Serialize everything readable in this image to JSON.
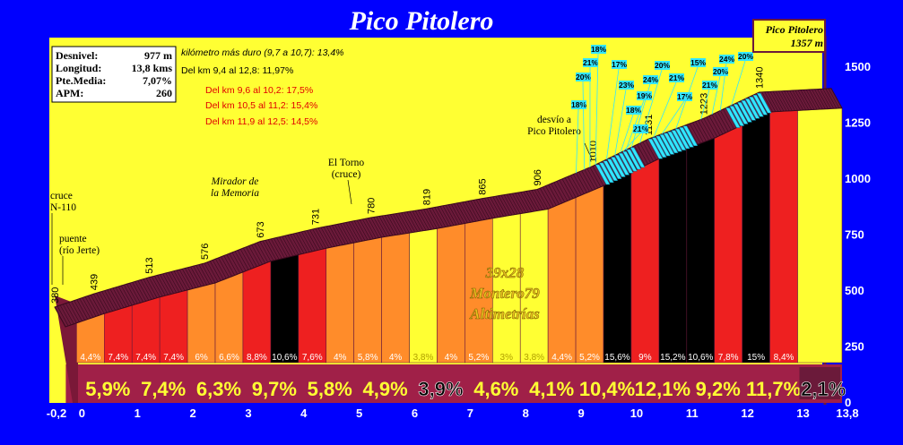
{
  "title": "Pico Pitolero",
  "stats": [
    {
      "label": "Desnivel:",
      "value": "977 m"
    },
    {
      "label": "Longitud:",
      "value": "13,8 kms"
    },
    {
      "label": "Pte.Media:",
      "value": "7,07%"
    },
    {
      "label": "APM:",
      "value": "260"
    }
  ],
  "notes": [
    {
      "text": "kilómetro más duro (9,7 a 10,7):  13,4%",
      "color": "#000000",
      "italic": true
    },
    {
      "text": "Del km 9,4 al 12,8:   11,97%",
      "color": "#000000",
      "italic": false
    },
    {
      "text": "Del km 9,6 al 10,2: 17,5%",
      "color": "#e00000",
      "italic": false
    },
    {
      "text": "Del km 10,5 al 11,2: 15,4%",
      "color": "#e00000",
      "italic": false
    },
    {
      "text": "Del km 11,9 al 12,5: 14,5%",
      "color": "#e00000",
      "italic": false
    }
  ],
  "summit": {
    "name": "Pico Pitolero",
    "elevation": "1357 m"
  },
  "watermark": [
    "39x28",
    "Montero79",
    "Altimetrías"
  ],
  "annotations": [
    {
      "lines": [
        "cruce",
        "N-110"
      ],
      "km": -0.2,
      "italic": false
    },
    {
      "lines": [
        "puente",
        "(río Jerte)"
      ],
      "km": -0.2,
      "italic": false
    },
    {
      "lines": [
        "Mirador de",
        "la Memoria"
      ],
      "km": 2.7,
      "italic": true
    },
    {
      "lines": [
        "El Torno",
        "(cruce)"
      ],
      "km": 4.8,
      "italic": false
    },
    {
      "lines": [
        "desvío a",
        "Pico Pitolero"
      ],
      "km": 9.0,
      "italic": false
    }
  ],
  "colors": {
    "background": "#0000fe",
    "plot": "#ffff33",
    "road": "#6b1a3a",
    "cyan": "#33e6ff",
    "seg_yellow": "#ffff33",
    "seg_orange": "#ff8c2a",
    "seg_red": "#ee2020",
    "seg_black": "#000000"
  },
  "chart_data": {
    "type": "area",
    "title": "Pico Pitolero",
    "xlabel": "",
    "ylabel": "",
    "xlim": [
      -0.2,
      13.8
    ],
    "ylim": [
      0,
      1500
    ],
    "x_ticks": [
      "-0,2",
      "0",
      "1",
      "2",
      "3",
      "4",
      "5",
      "6",
      "7",
      "8",
      "9",
      "10",
      "11",
      "12",
      "13",
      "13,8"
    ],
    "y_ticks": [
      0,
      250,
      500,
      750,
      1000,
      1250,
      1500
    ],
    "profile": [
      {
        "km": -0.2,
        "elev": 380
      },
      {
        "km": 0.5,
        "elev": 439
      },
      {
        "km": 1.5,
        "elev": 513
      },
      {
        "km": 2.5,
        "elev": 576
      },
      {
        "km": 3.5,
        "elev": 673
      },
      {
        "km": 4.5,
        "elev": 731
      },
      {
        "km": 5.5,
        "elev": 780
      },
      {
        "km": 6.5,
        "elev": 819
      },
      {
        "km": 7.5,
        "elev": 865
      },
      {
        "km": 8.5,
        "elev": 906
      },
      {
        "km": 9.5,
        "elev": 1010
      },
      {
        "km": 10.5,
        "elev": 1131
      },
      {
        "km": 11.5,
        "elev": 1223
      },
      {
        "km": 12.5,
        "elev": 1340
      },
      {
        "km": 13.8,
        "elev": 1357
      }
    ],
    "elevation_labels": [
      {
        "km": -0.2,
        "label": "380"
      },
      {
        "km": 0.5,
        "label": "439"
      },
      {
        "km": 1.5,
        "label": "513"
      },
      {
        "km": 2.5,
        "label": "576"
      },
      {
        "km": 3.5,
        "label": "673"
      },
      {
        "km": 4.5,
        "label": "731"
      },
      {
        "km": 5.5,
        "label": "780"
      },
      {
        "km": 6.5,
        "label": "819"
      },
      {
        "km": 7.5,
        "label": "865"
      },
      {
        "km": 8.5,
        "label": "906"
      },
      {
        "km": 9.5,
        "label": "1010"
      },
      {
        "km": 10.5,
        "label": "1131"
      },
      {
        "km": 11.5,
        "label": "1223"
      },
      {
        "km": 12.5,
        "label": "1340"
      }
    ],
    "segments": [
      {
        "start": 0.0,
        "end": 0.5,
        "grade": "4,4%",
        "color": "orange"
      },
      {
        "start": 0.5,
        "end": 1.0,
        "grade": "7,4%",
        "color": "red"
      },
      {
        "start": 1.0,
        "end": 1.5,
        "grade": "7,4%",
        "color": "red"
      },
      {
        "start": 1.5,
        "end": 2.0,
        "grade": "7,4%",
        "color": "red"
      },
      {
        "start": 2.0,
        "end": 2.5,
        "grade": "6%",
        "color": "orange"
      },
      {
        "start": 2.5,
        "end": 3.0,
        "grade": "6,6%",
        "color": "orange"
      },
      {
        "start": 3.0,
        "end": 3.5,
        "grade": "8,8%",
        "color": "red"
      },
      {
        "start": 3.5,
        "end": 4.0,
        "grade": "10,6%",
        "color": "black"
      },
      {
        "start": 4.0,
        "end": 4.5,
        "grade": "7,6%",
        "color": "red"
      },
      {
        "start": 4.5,
        "end": 5.0,
        "grade": "4%",
        "color": "orange"
      },
      {
        "start": 5.0,
        "end": 5.5,
        "grade": "5,8%",
        "color": "orange"
      },
      {
        "start": 5.5,
        "end": 6.0,
        "grade": "4%",
        "color": "orange"
      },
      {
        "start": 6.0,
        "end": 6.5,
        "grade": "3,8%",
        "color": "yellow"
      },
      {
        "start": 6.5,
        "end": 7.0,
        "grade": "4%",
        "color": "orange"
      },
      {
        "start": 7.0,
        "end": 7.5,
        "grade": "5,2%",
        "color": "orange"
      },
      {
        "start": 7.5,
        "end": 8.0,
        "grade": "3%",
        "color": "yellow"
      },
      {
        "start": 8.0,
        "end": 8.5,
        "grade": "3,8%",
        "color": "yellow"
      },
      {
        "start": 8.5,
        "end": 9.0,
        "grade": "4,4%",
        "color": "orange"
      },
      {
        "start": 9.0,
        "end": 9.5,
        "grade": "5,2%",
        "color": "orange"
      },
      {
        "start": 9.5,
        "end": 10.0,
        "grade": "15,6%",
        "color": "black"
      },
      {
        "start": 10.0,
        "end": 10.5,
        "grade": "9%",
        "color": "red"
      },
      {
        "start": 10.5,
        "end": 11.0,
        "grade": "15,2%",
        "color": "black"
      },
      {
        "start": 11.0,
        "end": 11.5,
        "grade": "10,6%",
        "color": "black"
      },
      {
        "start": 11.5,
        "end": 12.0,
        "grade": "7,8%",
        "color": "red"
      },
      {
        "start": 12.0,
        "end": 12.5,
        "grade": "15%",
        "color": "black"
      },
      {
        "start": 12.5,
        "end": 13.0,
        "grade": "8,4%",
        "color": "red"
      },
      {
        "start": 13.0,
        "end": 13.8,
        "grade": "",
        "color": "yellow"
      }
    ],
    "km_grades": [
      {
        "km": "0-1",
        "grade": "5,9%"
      },
      {
        "km": "1-2",
        "grade": "7,4%"
      },
      {
        "km": "2-3",
        "grade": "6,3%"
      },
      {
        "km": "3-4",
        "grade": "9,7%"
      },
      {
        "km": "4-5",
        "grade": "5,8%"
      },
      {
        "km": "5-6",
        "grade": "4,9%"
      },
      {
        "km": "6-7",
        "grade": "3,9%"
      },
      {
        "km": "7-8",
        "grade": "4,6%"
      },
      {
        "km": "8-9",
        "grade": "4,1%"
      },
      {
        "km": "9-10",
        "grade": "10,4%"
      },
      {
        "km": "10-11",
        "grade": "12,1%"
      },
      {
        "km": "11-12",
        "grade": "9,2%"
      },
      {
        "km": "12-13",
        "grade": "11,7%"
      },
      {
        "km": "13-13,8",
        "grade": "2,1%"
      }
    ],
    "steep_ramps": [
      {
        "km": 9.2,
        "grade": "18%"
      },
      {
        "km": 9.35,
        "grade": "20%"
      },
      {
        "km": 9.45,
        "grade": "21%"
      },
      {
        "km": 9.55,
        "grade": "18%"
      },
      {
        "km": 9.75,
        "grade": "17%"
      },
      {
        "km": 9.9,
        "grade": "23%"
      },
      {
        "km": 10.0,
        "grade": "18%"
      },
      {
        "km": 10.05,
        "grade": "21%"
      },
      {
        "km": 10.1,
        "grade": "19%"
      },
      {
        "km": 10.2,
        "grade": "24%"
      },
      {
        "km": 10.35,
        "grade": "20%"
      },
      {
        "km": 10.6,
        "grade": "21%"
      },
      {
        "km": 10.75,
        "grade": "17%"
      },
      {
        "km": 11.0,
        "grade": "15%"
      },
      {
        "km": 11.45,
        "grade": "21%"
      },
      {
        "km": 11.65,
        "grade": "20%"
      },
      {
        "km": 11.8,
        "grade": "24%"
      },
      {
        "km": 12.0,
        "grade": "20%"
      }
    ]
  }
}
